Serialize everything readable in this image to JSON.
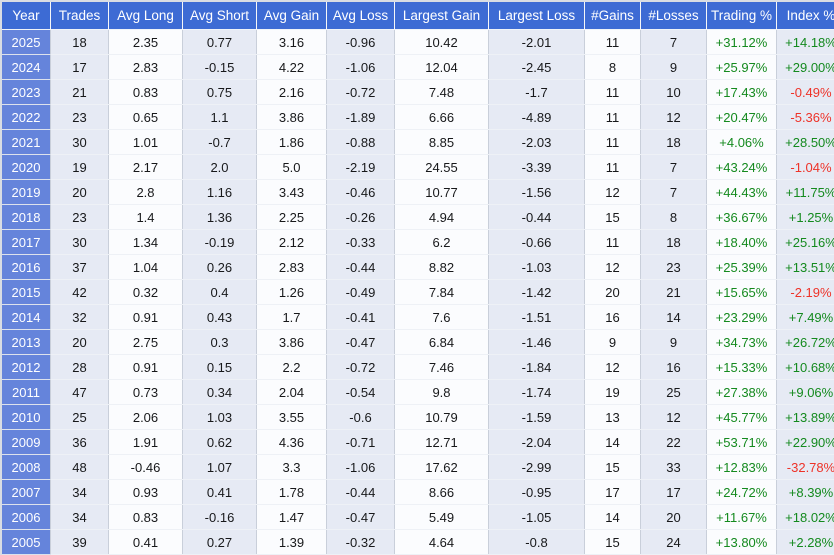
{
  "colors": {
    "header_bg": "#3d6bd4",
    "year_cell_bg": "#6584db",
    "stripe_bg": "#e6eaf4",
    "plain_bg": "#fbfcfe",
    "positive": "#148a1e",
    "negative": "#ee3228"
  },
  "table": {
    "columns": [
      {
        "key": "year",
        "label": "Year"
      },
      {
        "key": "trades",
        "label": "Trades"
      },
      {
        "key": "avg_long",
        "label": "Avg Long"
      },
      {
        "key": "avg_short",
        "label": "Avg Short"
      },
      {
        "key": "avg_gain",
        "label": "Avg Gain"
      },
      {
        "key": "avg_loss",
        "label": "Avg Loss"
      },
      {
        "key": "largest_gain",
        "label": "Largest Gain"
      },
      {
        "key": "largest_loss",
        "label": "Largest Loss"
      },
      {
        "key": "gains",
        "label": "#Gains"
      },
      {
        "key": "losses",
        "label": "#Losses"
      },
      {
        "key": "trading_pct",
        "label": "Trading %"
      },
      {
        "key": "index_pct",
        "label": "Index %"
      }
    ],
    "rows": [
      {
        "year": "2025",
        "trades": "18",
        "avg_long": "2.35",
        "avg_short": "0.77",
        "avg_gain": "3.16",
        "avg_loss": "-0.96",
        "largest_gain": "10.42",
        "largest_loss": "-2.01",
        "gains": "11",
        "losses": "7",
        "trading_pct": "+31.12%",
        "index_pct": "+14.18%"
      },
      {
        "year": "2024",
        "trades": "17",
        "avg_long": "2.83",
        "avg_short": "-0.15",
        "avg_gain": "4.22",
        "avg_loss": "-1.06",
        "largest_gain": "12.04",
        "largest_loss": "-2.45",
        "gains": "8",
        "losses": "9",
        "trading_pct": "+25.97%",
        "index_pct": "+29.00%"
      },
      {
        "year": "2023",
        "trades": "21",
        "avg_long": "0.83",
        "avg_short": "0.75",
        "avg_gain": "2.16",
        "avg_loss": "-0.72",
        "largest_gain": "7.48",
        "largest_loss": "-1.7",
        "gains": "11",
        "losses": "10",
        "trading_pct": "+17.43%",
        "index_pct": "-0.49%"
      },
      {
        "year": "2022",
        "trades": "23",
        "avg_long": "0.65",
        "avg_short": "1.1",
        "avg_gain": "3.86",
        "avg_loss": "-1.89",
        "largest_gain": "6.66",
        "largest_loss": "-4.89",
        "gains": "11",
        "losses": "12",
        "trading_pct": "+20.47%",
        "index_pct": "-5.36%"
      },
      {
        "year": "2021",
        "trades": "30",
        "avg_long": "1.01",
        "avg_short": "-0.7",
        "avg_gain": "1.86",
        "avg_loss": "-0.88",
        "largest_gain": "8.85",
        "largest_loss": "-2.03",
        "gains": "11",
        "losses": "18",
        "trading_pct": "+4.06%",
        "index_pct": "+28.50%"
      },
      {
        "year": "2020",
        "trades": "19",
        "avg_long": "2.17",
        "avg_short": "2.0",
        "avg_gain": "5.0",
        "avg_loss": "-2.19",
        "largest_gain": "24.55",
        "largest_loss": "-3.39",
        "gains": "11",
        "losses": "7",
        "trading_pct": "+43.24%",
        "index_pct": "-1.04%"
      },
      {
        "year": "2019",
        "trades": "20",
        "avg_long": "2.8",
        "avg_short": "1.16",
        "avg_gain": "3.43",
        "avg_loss": "-0.46",
        "largest_gain": "10.77",
        "largest_loss": "-1.56",
        "gains": "12",
        "losses": "7",
        "trading_pct": "+44.43%",
        "index_pct": "+11.75%"
      },
      {
        "year": "2018",
        "trades": "23",
        "avg_long": "1.4",
        "avg_short": "1.36",
        "avg_gain": "2.25",
        "avg_loss": "-0.26",
        "largest_gain": "4.94",
        "largest_loss": "-0.44",
        "gains": "15",
        "losses": "8",
        "trading_pct": "+36.67%",
        "index_pct": "+1.25%"
      },
      {
        "year": "2017",
        "trades": "30",
        "avg_long": "1.34",
        "avg_short": "-0.19",
        "avg_gain": "2.12",
        "avg_loss": "-0.33",
        "largest_gain": "6.2",
        "largest_loss": "-0.66",
        "gains": "11",
        "losses": "18",
        "trading_pct": "+18.40%",
        "index_pct": "+25.16%"
      },
      {
        "year": "2016",
        "trades": "37",
        "avg_long": "1.04",
        "avg_short": "0.26",
        "avg_gain": "2.83",
        "avg_loss": "-0.44",
        "largest_gain": "8.82",
        "largest_loss": "-1.03",
        "gains": "12",
        "losses": "23",
        "trading_pct": "+25.39%",
        "index_pct": "+13.51%"
      },
      {
        "year": "2015",
        "trades": "42",
        "avg_long": "0.32",
        "avg_short": "0.4",
        "avg_gain": "1.26",
        "avg_loss": "-0.49",
        "largest_gain": "7.84",
        "largest_loss": "-1.42",
        "gains": "20",
        "losses": "21",
        "trading_pct": "+15.65%",
        "index_pct": "-2.19%"
      },
      {
        "year": "2014",
        "trades": "32",
        "avg_long": "0.91",
        "avg_short": "0.43",
        "avg_gain": "1.7",
        "avg_loss": "-0.41",
        "largest_gain": "7.6",
        "largest_loss": "-1.51",
        "gains": "16",
        "losses": "14",
        "trading_pct": "+23.29%",
        "index_pct": "+7.49%"
      },
      {
        "year": "2013",
        "trades": "20",
        "avg_long": "2.75",
        "avg_short": "0.3",
        "avg_gain": "3.86",
        "avg_loss": "-0.47",
        "largest_gain": "6.84",
        "largest_loss": "-1.46",
        "gains": "9",
        "losses": "9",
        "trading_pct": "+34.73%",
        "index_pct": "+26.72%"
      },
      {
        "year": "2012",
        "trades": "28",
        "avg_long": "0.91",
        "avg_short": "0.15",
        "avg_gain": "2.2",
        "avg_loss": "-0.72",
        "largest_gain": "7.46",
        "largest_loss": "-1.84",
        "gains": "12",
        "losses": "16",
        "trading_pct": "+15.33%",
        "index_pct": "+10.68%"
      },
      {
        "year": "2011",
        "trades": "47",
        "avg_long": "0.73",
        "avg_short": "0.34",
        "avg_gain": "2.04",
        "avg_loss": "-0.54",
        "largest_gain": "9.8",
        "largest_loss": "-1.74",
        "gains": "19",
        "losses": "25",
        "trading_pct": "+27.38%",
        "index_pct": "+9.06%"
      },
      {
        "year": "2010",
        "trades": "25",
        "avg_long": "2.06",
        "avg_short": "1.03",
        "avg_gain": "3.55",
        "avg_loss": "-0.6",
        "largest_gain": "10.79",
        "largest_loss": "-1.59",
        "gains": "13",
        "losses": "12",
        "trading_pct": "+45.77%",
        "index_pct": "+13.89%"
      },
      {
        "year": "2009",
        "trades": "36",
        "avg_long": "1.91",
        "avg_short": "0.62",
        "avg_gain": "4.36",
        "avg_loss": "-0.71",
        "largest_gain": "12.71",
        "largest_loss": "-2.04",
        "gains": "14",
        "losses": "22",
        "trading_pct": "+53.71%",
        "index_pct": "+22.90%"
      },
      {
        "year": "2008",
        "trades": "48",
        "avg_long": "-0.46",
        "avg_short": "1.07",
        "avg_gain": "3.3",
        "avg_loss": "-1.06",
        "largest_gain": "17.62",
        "largest_loss": "-2.99",
        "gains": "15",
        "losses": "33",
        "trading_pct": "+12.83%",
        "index_pct": "-32.78%"
      },
      {
        "year": "2007",
        "trades": "34",
        "avg_long": "0.93",
        "avg_short": "0.41",
        "avg_gain": "1.78",
        "avg_loss": "-0.44",
        "largest_gain": "8.66",
        "largest_loss": "-0.95",
        "gains": "17",
        "losses": "17",
        "trading_pct": "+24.72%",
        "index_pct": "+8.39%"
      },
      {
        "year": "2006",
        "trades": "34",
        "avg_long": "0.83",
        "avg_short": "-0.16",
        "avg_gain": "1.47",
        "avg_loss": "-0.47",
        "largest_gain": "5.49",
        "largest_loss": "-1.05",
        "gains": "14",
        "losses": "20",
        "trading_pct": "+11.67%",
        "index_pct": "+18.02%"
      },
      {
        "year": "2005",
        "trades": "39",
        "avg_long": "0.41",
        "avg_short": "0.27",
        "avg_gain": "1.39",
        "avg_loss": "-0.32",
        "largest_gain": "4.64",
        "largest_loss": "-0.8",
        "gains": "15",
        "losses": "24",
        "trading_pct": "+13.80%",
        "index_pct": "+2.28%"
      }
    ]
  }
}
